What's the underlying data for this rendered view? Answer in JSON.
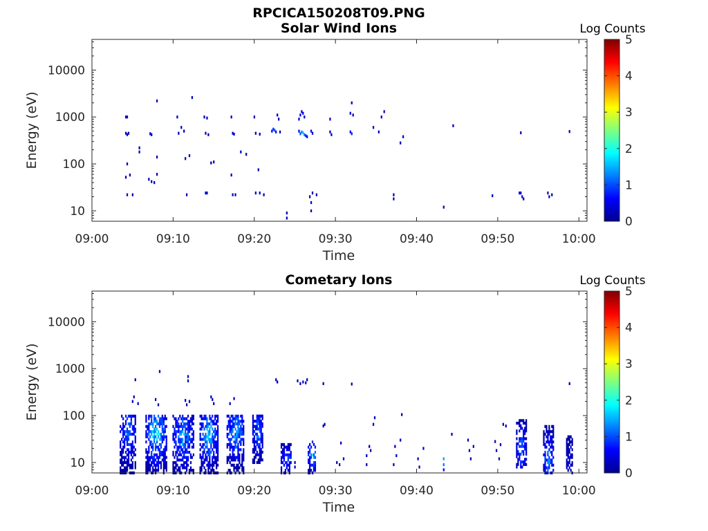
{
  "figure_title": "RPCICA150208T09.PNG",
  "chart_data": [
    {
      "type": "heatmap",
      "title": "Solar Wind Ions",
      "xlabel": "Time",
      "ylabel": "Energy (eV)",
      "yscale": "log",
      "ylim": [
        6,
        45000
      ],
      "xlim_minutes": [
        0,
        61
      ],
      "x_ticks": [
        "09:00",
        "09:10",
        "09:20",
        "09:30",
        "09:40",
        "09:50",
        "10:00"
      ],
      "y_ticks": [
        "10",
        "100",
        "1000",
        "10000"
      ],
      "grid": false,
      "colorbar": {
        "label": "Log Counts",
        "ticks": [
          "0",
          "1",
          "2",
          "3",
          "4",
          "5"
        ],
        "range": [
          0,
          5
        ],
        "colormap": "jet"
      },
      "points": [
        {
          "t": "09:04:10",
          "e": 1000,
          "c": 0.3
        },
        {
          "t": "09:04:20",
          "e": 1000,
          "c": 0.3
        },
        {
          "t": "09:04:10",
          "e": 450,
          "c": 0.3
        },
        {
          "t": "09:04:20",
          "e": 420,
          "c": 0.4
        },
        {
          "t": "09:04:30",
          "e": 450,
          "c": 0.3
        },
        {
          "t": "09:04:20",
          "e": 100,
          "c": 0.3
        },
        {
          "t": "09:04:10",
          "e": 52,
          "c": 0.2
        },
        {
          "t": "09:04:40",
          "e": 58,
          "c": 0.3
        },
        {
          "t": "09:04:20",
          "e": 22,
          "c": 0.3
        },
        {
          "t": "09:05:00",
          "e": 22,
          "c": 0.3
        },
        {
          "t": "09:05:50",
          "e": 220,
          "c": 0.3
        },
        {
          "t": "09:05:50",
          "e": 180,
          "c": 0.3
        },
        {
          "t": "09:07:10",
          "e": 440,
          "c": 0.4
        },
        {
          "t": "09:07:20",
          "e": 420,
          "c": 0.4
        },
        {
          "t": "09:07:00",
          "e": 47,
          "c": 0.3
        },
        {
          "t": "09:07:20",
          "e": 42,
          "c": 0.3
        },
        {
          "t": "09:07:40",
          "e": 40,
          "c": 0.3
        },
        {
          "t": "09:08:00",
          "e": 2200,
          "c": 0.3
        },
        {
          "t": "09:08:00",
          "e": 140,
          "c": 0.3
        },
        {
          "t": "09:08:00",
          "e": 60,
          "c": 0.3
        },
        {
          "t": "09:10:30",
          "e": 1000,
          "c": 0.3
        },
        {
          "t": "09:10:40",
          "e": 450,
          "c": 0.3
        },
        {
          "t": "09:11:00",
          "e": 600,
          "c": 0.3
        },
        {
          "t": "09:11:20",
          "e": 500,
          "c": 0.3
        },
        {
          "t": "09:11:30",
          "e": 130,
          "c": 0.3
        },
        {
          "t": "09:11:40",
          "e": 22,
          "c": 0.3
        },
        {
          "t": "09:12:00",
          "e": 150,
          "c": 0.3
        },
        {
          "t": "09:12:20",
          "e": 2600,
          "c": 0.3
        },
        {
          "t": "09:13:50",
          "e": 1000,
          "c": 0.3
        },
        {
          "t": "09:14:10",
          "e": 950,
          "c": 0.3
        },
        {
          "t": "09:14:00",
          "e": 450,
          "c": 0.3
        },
        {
          "t": "09:14:20",
          "e": 420,
          "c": 0.3
        },
        {
          "t": "09:14:00",
          "e": 24,
          "c": 0.4
        },
        {
          "t": "09:14:10",
          "e": 24,
          "c": 0.4
        },
        {
          "t": "09:14:40",
          "e": 105,
          "c": 0.3
        },
        {
          "t": "09:15:00",
          "e": 110,
          "c": 0.3
        },
        {
          "t": "09:17:10",
          "e": 1000,
          "c": 0.3
        },
        {
          "t": "09:17:20",
          "e": 450,
          "c": 0.4
        },
        {
          "t": "09:17:30",
          "e": 430,
          "c": 0.4
        },
        {
          "t": "09:17:10",
          "e": 58,
          "c": 0.3
        },
        {
          "t": "09:17:20",
          "e": 22,
          "c": 0.3
        },
        {
          "t": "09:17:40",
          "e": 22,
          "c": 0.3
        },
        {
          "t": "09:18:20",
          "e": 180,
          "c": 0.3
        },
        {
          "t": "09:19:00",
          "e": 160,
          "c": 0.3
        },
        {
          "t": "09:20:00",
          "e": 1000,
          "c": 0.3
        },
        {
          "t": "09:20:10",
          "e": 450,
          "c": 0.3
        },
        {
          "t": "09:20:40",
          "e": 430,
          "c": 0.3
        },
        {
          "t": "09:20:30",
          "e": 75,
          "c": 0.3
        },
        {
          "t": "09:20:10",
          "e": 24,
          "c": 0.4
        },
        {
          "t": "09:20:40",
          "e": 24,
          "c": 0.4
        },
        {
          "t": "09:21:10",
          "e": 22,
          "c": 0.3
        },
        {
          "t": "09:22:10",
          "e": 500,
          "c": 0.5
        },
        {
          "t": "09:22:20",
          "e": 550,
          "c": 0.8
        },
        {
          "t": "09:22:30",
          "e": 520,
          "c": 1.1
        },
        {
          "t": "09:22:40",
          "e": 480,
          "c": 0.7
        },
        {
          "t": "09:22:50",
          "e": 1100,
          "c": 0.3
        },
        {
          "t": "09:23:00",
          "e": 900,
          "c": 0.3
        },
        {
          "t": "09:23:10",
          "e": 480,
          "c": 0.3
        },
        {
          "t": "09:24:00",
          "e": 9,
          "c": 0.3
        },
        {
          "t": "09:24:00",
          "e": 7,
          "c": 0.3
        },
        {
          "t": "09:25:30",
          "e": 900,
          "c": 0.4
        },
        {
          "t": "09:25:40",
          "e": 1100,
          "c": 0.5
        },
        {
          "t": "09:25:50",
          "e": 1300,
          "c": 0.4
        },
        {
          "t": "09:26:00",
          "e": 1200,
          "c": 0.6
        },
        {
          "t": "09:26:10",
          "e": 1000,
          "c": 0.4
        },
        {
          "t": "09:25:30",
          "e": 500,
          "c": 0.6
        },
        {
          "t": "09:25:40",
          "e": 440,
          "c": 1.0
        },
        {
          "t": "09:25:50",
          "e": 480,
          "c": 1.3
        },
        {
          "t": "09:26:00",
          "e": 460,
          "c": 1.6
        },
        {
          "t": "09:26:10",
          "e": 420,
          "c": 1.2
        },
        {
          "t": "09:26:20",
          "e": 400,
          "c": 0.8
        },
        {
          "t": "09:26:30",
          "e": 380,
          "c": 0.5
        },
        {
          "t": "09:27:00",
          "e": 500,
          "c": 0.6
        },
        {
          "t": "09:27:10",
          "e": 450,
          "c": 0.4
        },
        {
          "t": "09:26:50",
          "e": 20,
          "c": 0.3
        },
        {
          "t": "09:27:00",
          "e": 15,
          "c": 0.3
        },
        {
          "t": "09:27:00",
          "e": 10,
          "c": 0.3
        },
        {
          "t": "09:27:10",
          "e": 24,
          "c": 0.3
        },
        {
          "t": "09:27:40",
          "e": 22,
          "c": 0.3
        },
        {
          "t": "09:29:20",
          "e": 900,
          "c": 0.4
        },
        {
          "t": "09:29:20",
          "e": 480,
          "c": 0.4
        },
        {
          "t": "09:29:30",
          "e": 420,
          "c": 0.4
        },
        {
          "t": "09:31:50",
          "e": 1200,
          "c": 0.4
        },
        {
          "t": "09:32:00",
          "e": 2000,
          "c": 0.3
        },
        {
          "t": "09:32:10",
          "e": 1100,
          "c": 0.4
        },
        {
          "t": "09:31:50",
          "e": 480,
          "c": 0.6
        },
        {
          "t": "09:32:00",
          "e": 440,
          "c": 0.8
        },
        {
          "t": "09:34:40",
          "e": 600,
          "c": 0.3
        },
        {
          "t": "09:35:20",
          "e": 480,
          "c": 0.3
        },
        {
          "t": "09:35:40",
          "e": 1000,
          "c": 0.4
        },
        {
          "t": "09:36:00",
          "e": 1300,
          "c": 0.3
        },
        {
          "t": "09:37:10",
          "e": 22,
          "c": 0.3
        },
        {
          "t": "09:37:10",
          "e": 18,
          "c": 0.3
        },
        {
          "t": "09:38:00",
          "e": 280,
          "c": 0.3
        },
        {
          "t": "09:38:20",
          "e": 380,
          "c": 0.3
        },
        {
          "t": "09:43:20",
          "e": 12,
          "c": 0.3
        },
        {
          "t": "09:44:30",
          "e": 650,
          "c": 0.3
        },
        {
          "t": "09:49:20",
          "e": 21,
          "c": 0.3
        },
        {
          "t": "09:52:50",
          "e": 460,
          "c": 0.3
        },
        {
          "t": "09:52:40",
          "e": 24,
          "c": 0.4
        },
        {
          "t": "09:52:50",
          "e": 24,
          "c": 0.5
        },
        {
          "t": "09:53:00",
          "e": 20,
          "c": 0.4
        },
        {
          "t": "09:53:10",
          "e": 18,
          "c": 0.3
        },
        {
          "t": "09:56:10",
          "e": 24,
          "c": 0.4
        },
        {
          "t": "09:56:20",
          "e": 20,
          "c": 0.3
        },
        {
          "t": "09:56:40",
          "e": 22,
          "c": 0.3
        },
        {
          "t": "09:58:50",
          "e": 490,
          "c": 0.3
        }
      ]
    },
    {
      "type": "heatmap",
      "title": "Cometary Ions",
      "xlabel": "Time",
      "ylabel": "Energy (eV)",
      "yscale": "log",
      "ylim": [
        6,
        45000
      ],
      "xlim_minutes": [
        0,
        61
      ],
      "x_ticks": [
        "09:00",
        "09:10",
        "09:20",
        "09:30",
        "09:40",
        "09:50",
        "10:00"
      ],
      "y_ticks": [
        "10",
        "100",
        "1000",
        "10000"
      ],
      "grid": false,
      "colorbar": {
        "label": "Log Counts",
        "ticks": [
          "0",
          "1",
          "2",
          "3",
          "4",
          "5"
        ],
        "range": [
          0,
          5
        ],
        "colormap": "jet"
      },
      "clusters": [
        {
          "t0": "09:03:30",
          "t1": "09:05:30",
          "emin": 6,
          "emax": 100,
          "peak": 1.3,
          "peak_e": 45
        },
        {
          "t0": "09:06:40",
          "t1": "09:09:10",
          "emin": 6,
          "emax": 110,
          "peak": 2.0,
          "peak_e": 40
        },
        {
          "t0": "09:10:00",
          "t1": "09:12:30",
          "emin": 6,
          "emax": 110,
          "peak": 1.6,
          "peak_e": 35
        },
        {
          "t0": "09:13:20",
          "t1": "09:15:30",
          "emin": 6,
          "emax": 110,
          "peak": 1.8,
          "peak_e": 40
        },
        {
          "t0": "09:16:40",
          "t1": "09:18:50",
          "emin": 6,
          "emax": 110,
          "peak": 1.6,
          "peak_e": 45
        },
        {
          "t0": "09:19:50",
          "t1": "09:21:10",
          "emin": 10,
          "emax": 100,
          "peak": 1.4,
          "peak_e": 45
        },
        {
          "t0": "09:23:20",
          "t1": "09:24:40",
          "emin": 6,
          "emax": 25,
          "peak": 1.2,
          "peak_e": 12
        },
        {
          "t0": "09:26:40",
          "t1": "09:27:40",
          "emin": 6,
          "emax": 30,
          "peak": 1.9,
          "peak_e": 15
        },
        {
          "t0": "09:52:20",
          "t1": "09:53:30",
          "emin": 8,
          "emax": 80,
          "peak": 1.4,
          "peak_e": 20
        },
        {
          "t0": "09:55:40",
          "t1": "09:56:50",
          "emin": 6,
          "emax": 60,
          "peak": 1.6,
          "peak_e": 12
        },
        {
          "t0": "09:58:30",
          "t1": "09:59:10",
          "emin": 6,
          "emax": 40,
          "peak": 0.7,
          "peak_e": 10
        }
      ],
      "points": [
        {
          "t": "09:05:20",
          "e": 580,
          "c": 0.3
        },
        {
          "t": "09:05:10",
          "e": 250,
          "c": 0.3
        },
        {
          "t": "09:05:00",
          "e": 200,
          "c": 0.3
        },
        {
          "t": "09:05:40",
          "e": 180,
          "c": 0.3
        },
        {
          "t": "09:07:50",
          "e": 220,
          "c": 0.3
        },
        {
          "t": "09:08:10",
          "e": 170,
          "c": 0.3
        },
        {
          "t": "09:08:20",
          "e": 870,
          "c": 0.3
        },
        {
          "t": "09:11:30",
          "e": 210,
          "c": 0.3
        },
        {
          "t": "09:11:50",
          "e": 680,
          "c": 0.3
        },
        {
          "t": "09:11:50",
          "e": 550,
          "c": 0.3
        },
        {
          "t": "09:12:00",
          "e": 200,
          "c": 0.3
        },
        {
          "t": "09:11:40",
          "e": 170,
          "c": 0.3
        },
        {
          "t": "09:14:40",
          "e": 250,
          "c": 0.3
        },
        {
          "t": "09:14:50",
          "e": 220,
          "c": 0.3
        },
        {
          "t": "09:15:00",
          "e": 180,
          "c": 0.3
        },
        {
          "t": "09:17:00",
          "e": 180,
          "c": 0.3
        },
        {
          "t": "09:17:30",
          "e": 230,
          "c": 0.3
        },
        {
          "t": "09:22:40",
          "e": 580,
          "c": 0.3
        },
        {
          "t": "09:22:50",
          "e": 520,
          "c": 0.3
        },
        {
          "t": "09:25:20",
          "e": 550,
          "c": 0.3
        },
        {
          "t": "09:25:40",
          "e": 480,
          "c": 0.3
        },
        {
          "t": "09:26:00",
          "e": 520,
          "c": 0.4
        },
        {
          "t": "09:26:20",
          "e": 500,
          "c": 0.4
        },
        {
          "t": "09:26:30",
          "e": 580,
          "c": 0.3
        },
        {
          "t": "09:28:30",
          "e": 480,
          "c": 0.3
        },
        {
          "t": "09:32:00",
          "e": 470,
          "c": 0.3
        },
        {
          "t": "09:28:40",
          "e": 65,
          "c": 0.3
        },
        {
          "t": "09:28:30",
          "e": 60,
          "c": 0.3
        },
        {
          "t": "09:25:00",
          "e": 10,
          "c": 0.3
        },
        {
          "t": "09:25:00",
          "e": 8,
          "c": 0.3
        },
        {
          "t": "09:30:10",
          "e": 10,
          "c": 0.3
        },
        {
          "t": "09:30:30",
          "e": 9,
          "c": 0.3
        },
        {
          "t": "09:30:40",
          "e": 26,
          "c": 0.3
        },
        {
          "t": "09:31:00",
          "e": 12,
          "c": 0.3
        },
        {
          "t": "09:33:50",
          "e": 14,
          "c": 0.3
        },
        {
          "t": "09:33:50",
          "e": 9,
          "c": 0.3
        },
        {
          "t": "09:34:10",
          "e": 22,
          "c": 0.3
        },
        {
          "t": "09:34:20",
          "e": 18,
          "c": 0.3
        },
        {
          "t": "09:34:50",
          "e": 90,
          "c": 0.3
        },
        {
          "t": "09:34:40",
          "e": 65,
          "c": 0.3
        },
        {
          "t": "09:37:20",
          "e": 22,
          "c": 0.3
        },
        {
          "t": "09:37:30",
          "e": 14,
          "c": 0.3
        },
        {
          "t": "09:37:10",
          "e": 9,
          "c": 0.3
        },
        {
          "t": "09:38:00",
          "e": 30,
          "c": 0.3
        },
        {
          "t": "09:38:10",
          "e": 105,
          "c": 0.3
        },
        {
          "t": "09:40:10",
          "e": 12,
          "c": 0.3
        },
        {
          "t": "09:40:20",
          "e": 8,
          "c": 0.3
        },
        {
          "t": "09:40:50",
          "e": 20,
          "c": 0.3
        },
        {
          "t": "09:43:20",
          "e": 12,
          "c": 1.4
        },
        {
          "t": "09:43:20",
          "e": 9,
          "c": 1.2
        },
        {
          "t": "09:43:20",
          "e": 7,
          "c": 0.6
        },
        {
          "t": "09:44:20",
          "e": 40,
          "c": 0.3
        },
        {
          "t": "09:46:20",
          "e": 30,
          "c": 0.3
        },
        {
          "t": "09:46:30",
          "e": 18,
          "c": 0.3
        },
        {
          "t": "09:46:40",
          "e": 12,
          "c": 0.3
        },
        {
          "t": "09:47:00",
          "e": 22,
          "c": 0.3
        },
        {
          "t": "09:49:40",
          "e": 28,
          "c": 0.3
        },
        {
          "t": "09:49:50",
          "e": 18,
          "c": 0.3
        },
        {
          "t": "09:50:10",
          "e": 12,
          "c": 0.3
        },
        {
          "t": "09:50:20",
          "e": 24,
          "c": 0.3
        },
        {
          "t": "09:50:40",
          "e": 65,
          "c": 0.3
        },
        {
          "t": "09:51:00",
          "e": 60,
          "c": 0.3
        },
        {
          "t": "09:58:50",
          "e": 480,
          "c": 0.3
        }
      ]
    }
  ]
}
